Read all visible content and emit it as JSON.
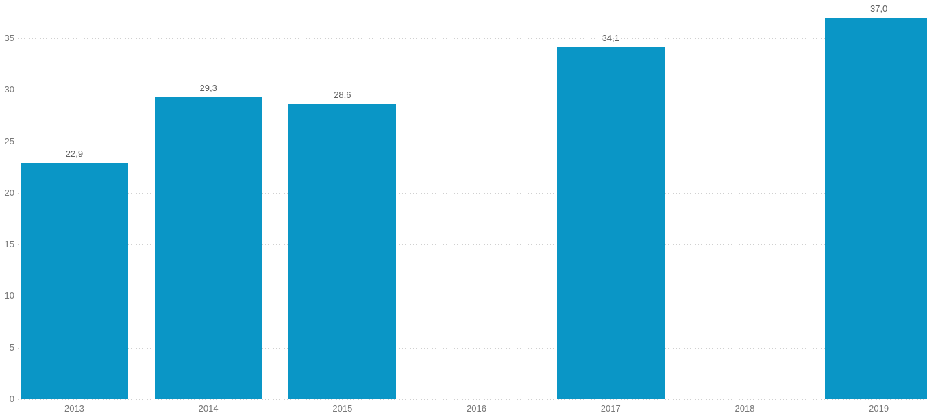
{
  "chart_data": {
    "type": "bar",
    "title": "",
    "xlabel": "",
    "ylabel": "",
    "categories": [
      "2013",
      "2014",
      "2015",
      "2016",
      "2017",
      "2018",
      "2019"
    ],
    "values": [
      22.9,
      29.3,
      28.6,
      null,
      34.1,
      null,
      37.0
    ],
    "value_labels": [
      "22,9",
      "29,3",
      "28,6",
      "",
      "34,1",
      "",
      "37,0"
    ],
    "ylim": [
      0,
      38.7
    ],
    "yticks": [
      0,
      5,
      10,
      15,
      20,
      25,
      30,
      35
    ],
    "ytick_labels": [
      "0",
      "5",
      "10",
      "15",
      "20",
      "25",
      "30",
      "35"
    ],
    "grid": "horizontal-dotted",
    "legend": "none",
    "colors": {
      "bar": "#0a96c6",
      "gridline": "#d0d0d0",
      "axis_label": "#777777",
      "data_label": "#606060",
      "background": "#ffffff"
    }
  }
}
